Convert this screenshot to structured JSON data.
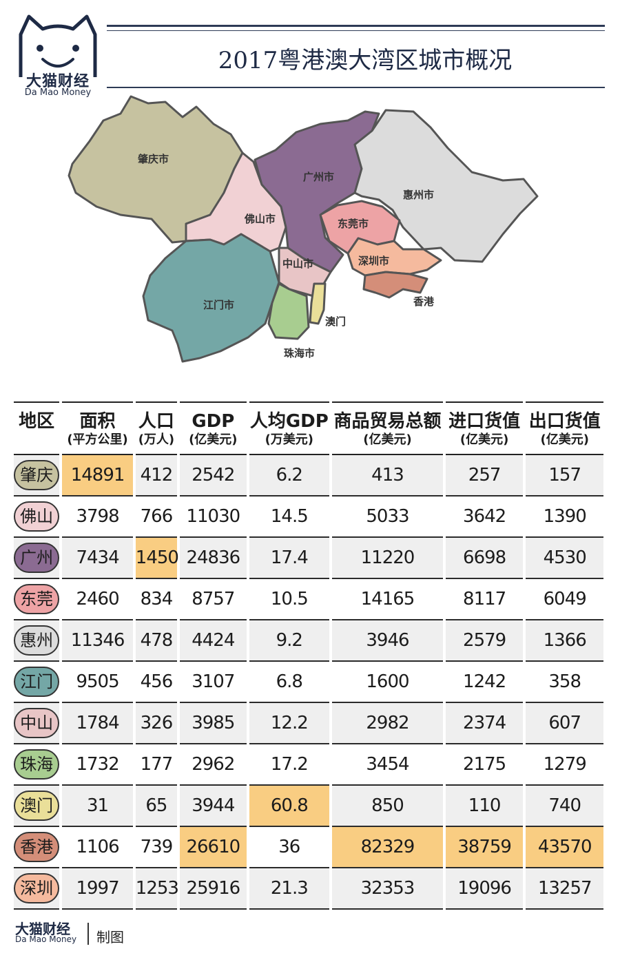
{
  "brand": {
    "name_zh": "大猫财经",
    "name_en": "Da Mao Money"
  },
  "title": "2017粤港澳大湾区城市概况",
  "map": {
    "labels": [
      "肇庆市",
      "广州市",
      "惠州市",
      "佛山市",
      "东莞市",
      "深圳市",
      "中山市",
      "江门市",
      "香港",
      "澳门",
      "珠海市"
    ],
    "region_colors": {
      "zhaoqing": "#c6c2a0",
      "guangzhou": "#8b6b92",
      "huizhou": "#dcdcdc",
      "foshan": "#f1d1d4",
      "dongguan": "#eda3a5",
      "shenzhen": "#f5ba9e",
      "zhongshan": "#e8c5c6",
      "jiangmen": "#74a7a6",
      "hongkong": "#d48e79",
      "macao": "#eadf99",
      "zhuhai": "#a8cd90"
    }
  },
  "table": {
    "headers": [
      {
        "h1": "地区",
        "h2": ""
      },
      {
        "h1": "面积",
        "h2": "(平方公里)"
      },
      {
        "h1": "人口",
        "h2": "(万人)"
      },
      {
        "h1": "GDP",
        "h2": "(亿美元)"
      },
      {
        "h1": "人均GDP",
        "h2": "(万美元)"
      },
      {
        "h1": "商品贸易总额",
        "h2": "(亿美元)"
      },
      {
        "h1": "进口货值",
        "h2": "(亿美元)"
      },
      {
        "h1": "出口货值",
        "h2": "(亿美元)"
      }
    ],
    "highlight_color": "#f9cd82",
    "rows": [
      {
        "city": "肇庆",
        "color": "#c6c2a0",
        "values": [
          "14891",
          "412",
          "2542",
          "6.2",
          "413",
          "257",
          "157"
        ],
        "highlight": [
          0
        ]
      },
      {
        "city": "佛山",
        "color": "#f1d1d4",
        "values": [
          "3798",
          "766",
          "11030",
          "14.5",
          "5033",
          "3642",
          "1390"
        ],
        "highlight": []
      },
      {
        "city": "广州",
        "color": "#8b6b92",
        "values": [
          "7434",
          "1450",
          "24836",
          "17.4",
          "11220",
          "6698",
          "4530"
        ],
        "highlight": [
          1
        ]
      },
      {
        "city": "东莞",
        "color": "#eda3a5",
        "values": [
          "2460",
          "834",
          "8757",
          "10.5",
          "14165",
          "8117",
          "6049"
        ],
        "highlight": []
      },
      {
        "city": "惠州",
        "color": "#dcdcdc",
        "values": [
          "11346",
          "478",
          "4424",
          "9.2",
          "3946",
          "2579",
          "1366"
        ],
        "highlight": []
      },
      {
        "city": "江门",
        "color": "#74a7a6",
        "values": [
          "9505",
          "456",
          "3107",
          "6.8",
          "1600",
          "1242",
          "358"
        ],
        "highlight": []
      },
      {
        "city": "中山",
        "color": "#e8c5c6",
        "values": [
          "1784",
          "326",
          "3985",
          "12.2",
          "2982",
          "2374",
          "607"
        ],
        "highlight": []
      },
      {
        "city": "珠海",
        "color": "#a8cd90",
        "values": [
          "1732",
          "177",
          "2962",
          "17.2",
          "3454",
          "2175",
          "1279"
        ],
        "highlight": []
      },
      {
        "city": "澳门",
        "color": "#eadf99",
        "values": [
          "31",
          "65",
          "3944",
          "60.8",
          "850",
          "110",
          "740"
        ],
        "highlight": [
          3
        ]
      },
      {
        "city": "香港",
        "color": "#d48e79",
        "values": [
          "1106",
          "739",
          "26610",
          "36",
          "82329",
          "38759",
          "43570"
        ],
        "highlight": [
          2,
          4,
          5,
          6
        ]
      },
      {
        "city": "深圳",
        "color": "#f5ba9e",
        "values": [
          "1997",
          "1253",
          "25916",
          "21.3",
          "32353",
          "19096",
          "13257"
        ],
        "highlight": []
      }
    ]
  },
  "footer": {
    "brand_zh": "大猫财经",
    "brand_en": "Da Mao Money",
    "note": "制图"
  }
}
